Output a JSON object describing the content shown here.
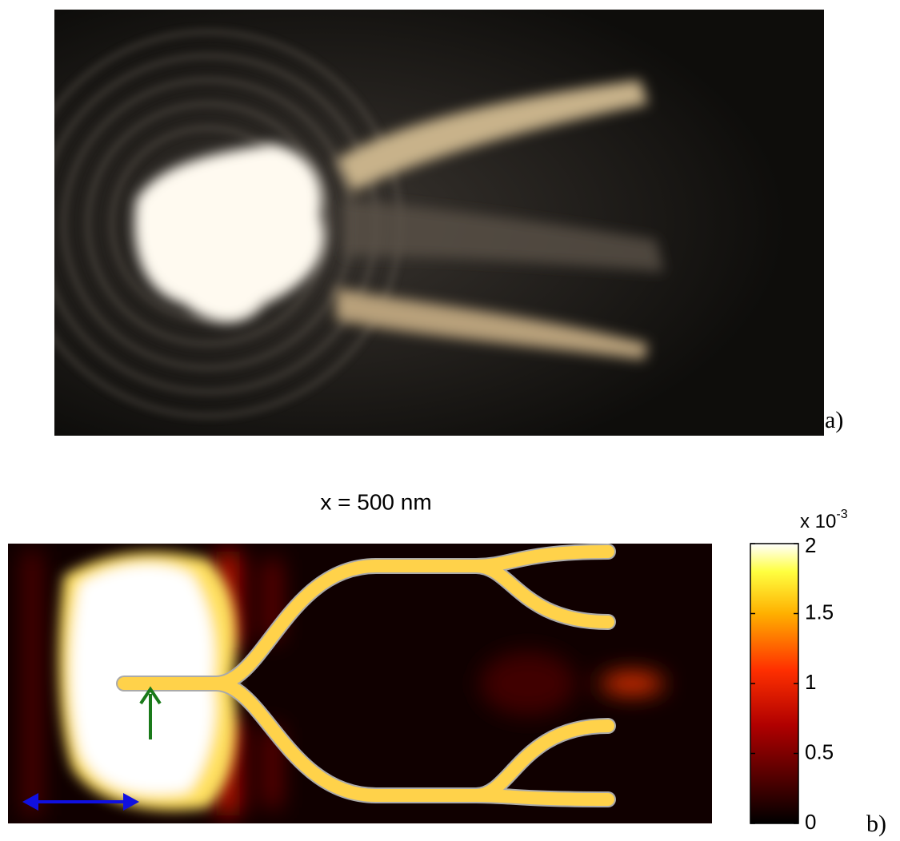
{
  "panel_a": {
    "label": "a)"
  },
  "panel_b": {
    "label": "b)",
    "title": "x = 500 nm",
    "colorbar": {
      "lim": [
        0,
        2
      ],
      "ticks": [
        0,
        0.5,
        1,
        1.5,
        2
      ],
      "multiplier": "x 10",
      "exponent": "-3"
    }
  }
}
